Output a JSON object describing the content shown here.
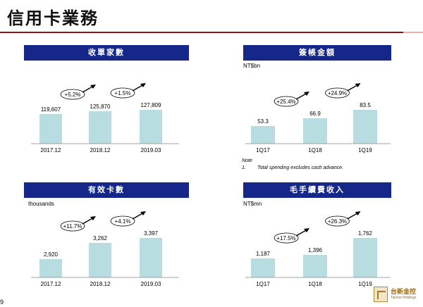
{
  "page": {
    "title": "信用卡業務",
    "page_number": "9"
  },
  "logo": {
    "name_cn": "台新金控",
    "name_en": "Taishin Holdings"
  },
  "colors": {
    "header_bg": "#15288a",
    "bar_fill": "#b7dde1",
    "title_rule": "#8b1414"
  },
  "chart_data": [
    {
      "type": "bar",
      "title": "收單家數",
      "unit": "",
      "categories": [
        "2017.12",
        "2018.12",
        "2019.03"
      ],
      "values": [
        119607,
        125870,
        127809
      ],
      "value_labels": [
        "119,607",
        "125,870",
        "127,809"
      ],
      "growth": [
        "+5.2%",
        "+1.5%"
      ]
    },
    {
      "type": "bar",
      "title": "簽帳金額",
      "unit": "NT$bn",
      "categories": [
        "1Q17",
        "1Q18",
        "1Q19"
      ],
      "values": [
        53.3,
        66.9,
        83.5
      ],
      "value_labels": [
        "53.3",
        "66.9",
        "83.5"
      ],
      "growth": [
        "+25.4%",
        "+24.9%"
      ],
      "note": {
        "heading": "Note",
        "marker": "1.",
        "text": "Total spending excludes cash advance."
      }
    },
    {
      "type": "bar",
      "title": "有效卡數",
      "unit": "thousands",
      "categories": [
        "2017.12",
        "2018.12",
        "2019.03"
      ],
      "values": [
        2920,
        3262,
        3397
      ],
      "value_labels": [
        "2,920",
        "3,262",
        "3,397"
      ],
      "growth": [
        "+11.7%",
        "+4.1%"
      ]
    },
    {
      "type": "bar",
      "title": "毛手續費收入",
      "unit": "NT$mn",
      "categories": [
        "1Q17",
        "1Q18",
        "1Q19"
      ],
      "values": [
        1187,
        1396,
        1762
      ],
      "value_labels": [
        "1,187",
        "1,396",
        "1,762"
      ],
      "growth": [
        "+17.5%",
        "+26.3%"
      ]
    }
  ]
}
